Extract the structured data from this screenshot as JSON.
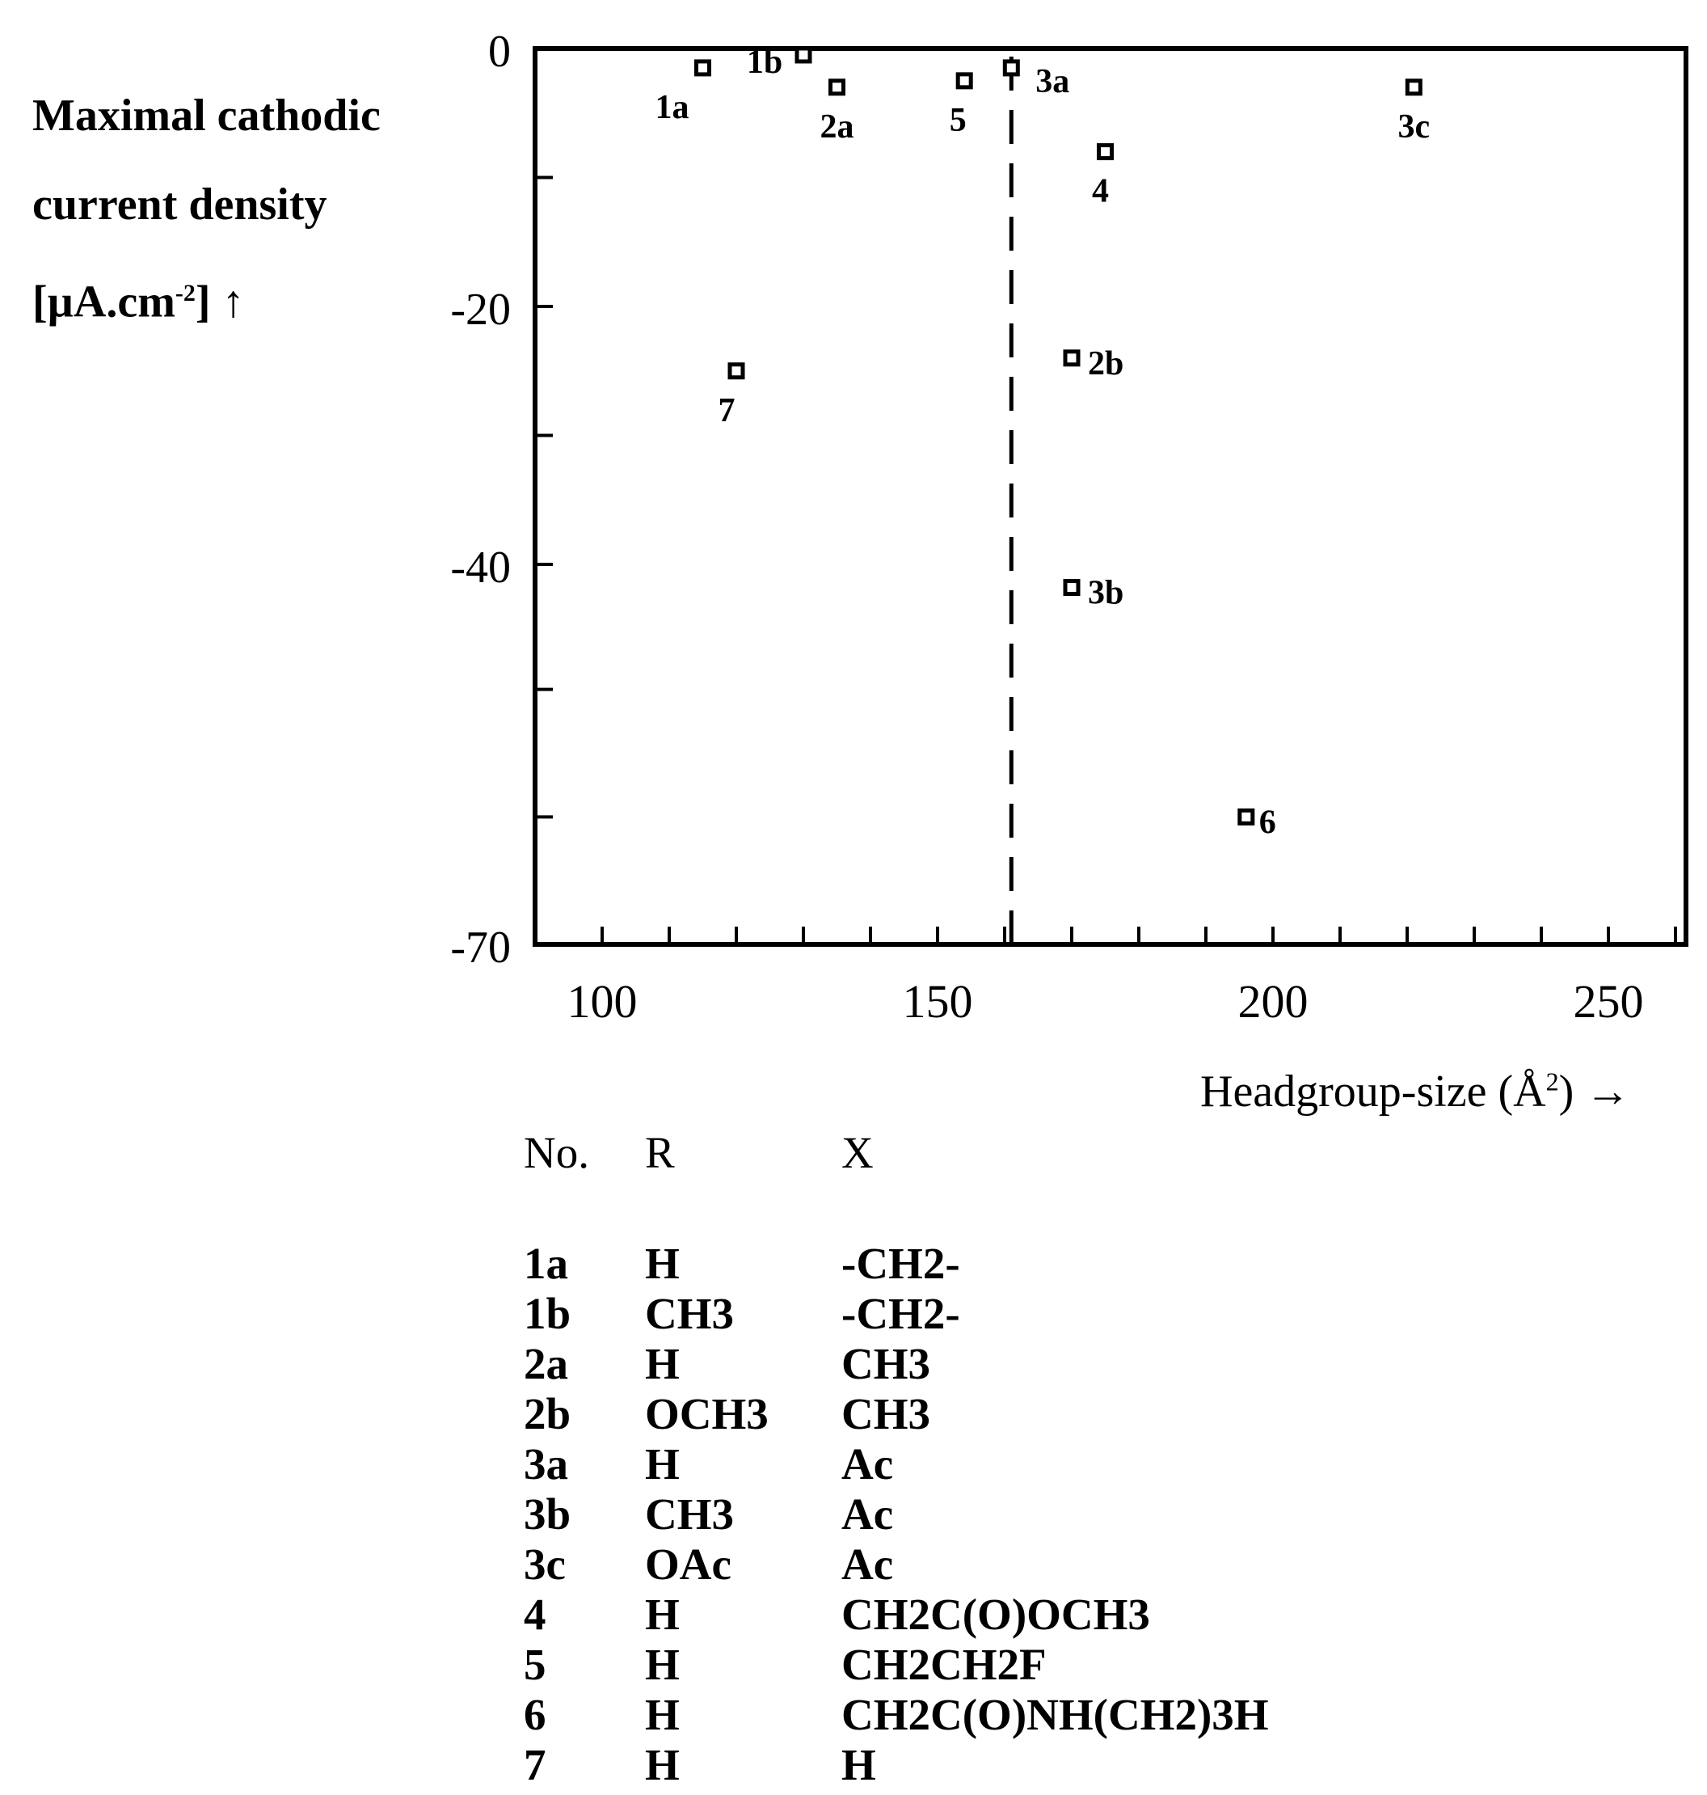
{
  "chart_data": {
    "type": "scatter",
    "title": "",
    "ylabel_lines": [
      "Maximal cathodic",
      "current density",
      "[µA.cm",
      "-2",
      "] ↑"
    ],
    "xlabel": "Headgroup-size (Å",
    "xlabel_sup": "2",
    "xlabel_tail": ") →",
    "xlim": [
      90,
      260
    ],
    "ylim": [
      -70,
      0
    ],
    "x_ticks": [
      100,
      150,
      200,
      250
    ],
    "y_ticks": [
      0,
      -20,
      -40,
      -70
    ],
    "grid": false,
    "threshold_x": 161,
    "points": [
      {
        "label": "1a",
        "x": 115,
        "y": -1.5
      },
      {
        "label": "1b",
        "x": 130,
        "y": -0.5
      },
      {
        "label": "2a",
        "x": 135,
        "y": -3
      },
      {
        "label": "5",
        "x": 154,
        "y": -2.5
      },
      {
        "label": "3a",
        "x": 161,
        "y": -1.5
      },
      {
        "label": "3c",
        "x": 221,
        "y": -3
      },
      {
        "label": "4",
        "x": 175,
        "y": -8
      },
      {
        "label": "2b",
        "x": 170,
        "y": -24
      },
      {
        "label": "7",
        "x": 120,
        "y": -25
      },
      {
        "label": "3b",
        "x": 170,
        "y": -42
      },
      {
        "label": "6",
        "x": 196,
        "y": -60
      }
    ]
  },
  "legend_table": {
    "headers": [
      "No.",
      "R",
      "X"
    ],
    "rows": [
      [
        "1a",
        "H",
        "-CH2-"
      ],
      [
        "1b",
        "CH3",
        "-CH2-"
      ],
      [
        "2a",
        "H",
        "CH3"
      ],
      [
        "2b",
        "OCH3",
        "CH3"
      ],
      [
        "3a",
        "H",
        "Ac"
      ],
      [
        "3b",
        "CH3",
        "Ac"
      ],
      [
        "3c",
        "OAc",
        "Ac"
      ],
      [
        "4",
        "H",
        "CH2C(O)OCH3"
      ],
      [
        "5",
        "H",
        "CH2CH2F"
      ],
      [
        "6",
        "H",
        "CH2C(O)NH(CH2)3H"
      ],
      [
        "7",
        "H",
        "H"
      ]
    ]
  }
}
